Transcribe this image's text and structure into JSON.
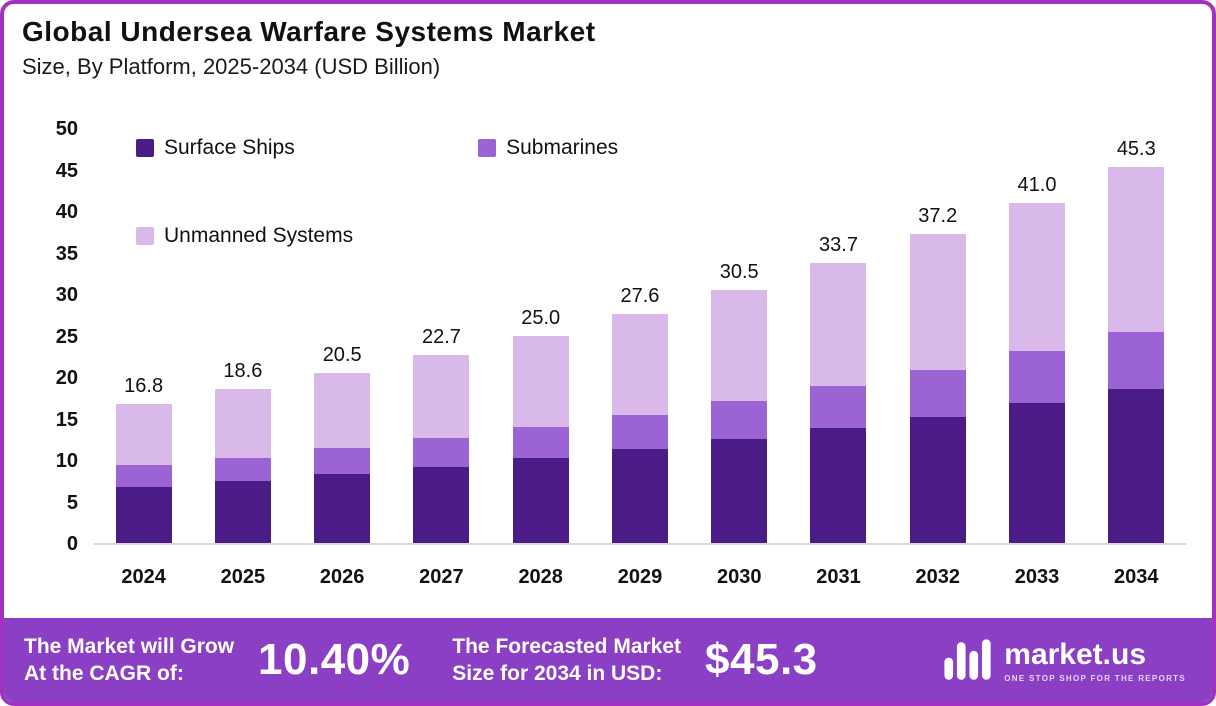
{
  "header": {
    "title": "Global Undersea Warfare Systems Market",
    "subtitle": "Size, By Platform, 2025-2034 (USD Billion)"
  },
  "chart_data": {
    "type": "bar",
    "stacked": true,
    "title": "Global Undersea Warfare Systems Market Size, By Platform, 2025-2034 (USD Billion)",
    "categories": [
      "2024",
      "2025",
      "2026",
      "2027",
      "2028",
      "2029",
      "2030",
      "2031",
      "2032",
      "2033",
      "2034"
    ],
    "series": [
      {
        "name": "Surface Ships",
        "color": "#4b1b87",
        "values": [
          6.7,
          7.5,
          8.3,
          9.2,
          10.3,
          11.3,
          12.5,
          13.8,
          15.2,
          16.9,
          18.6
        ]
      },
      {
        "name": "Submarines",
        "color": "#9b63d3",
        "values": [
          2.7,
          2.8,
          3.1,
          3.4,
          3.7,
          4.1,
          4.6,
          5.1,
          5.7,
          6.2,
          6.8
        ]
      },
      {
        "name": "Unmanned Systems",
        "color": "#d9b8ea",
        "values": [
          7.4,
          8.3,
          9.1,
          10.1,
          11.0,
          12.2,
          13.4,
          14.8,
          16.3,
          17.9,
          19.9
        ]
      }
    ],
    "totals": [
      "16.8",
      "18.6",
      "20.5",
      "22.7",
      "25.0",
      "27.6",
      "30.5",
      "33.7",
      "37.2",
      "41.0",
      "45.3"
    ],
    "ylim": [
      0,
      50
    ],
    "yticks": [
      0,
      5,
      10,
      15,
      20,
      25,
      30,
      35,
      40,
      45,
      50
    ],
    "legend_position": "top-left-inside",
    "grid": false
  },
  "footer": {
    "cagr_label_line1": "The Market will Grow",
    "cagr_label_line2": "At the CAGR of:",
    "cagr_value": "10.40%",
    "forecast_label_line1": "The Forecasted Market",
    "forecast_label_line2": "Size for 2034 in USD:",
    "forecast_value": "$45.3",
    "brand": {
      "name": "market.us",
      "tagline": "ONE STOP SHOP FOR THE REPORTS"
    }
  },
  "colors": {
    "card_border": "#a233c2",
    "footer_bg": "#8a3fc4",
    "surface_ships": "#4b1b87",
    "submarines": "#9b63d3",
    "unmanned_systems": "#d9b8ea"
  }
}
